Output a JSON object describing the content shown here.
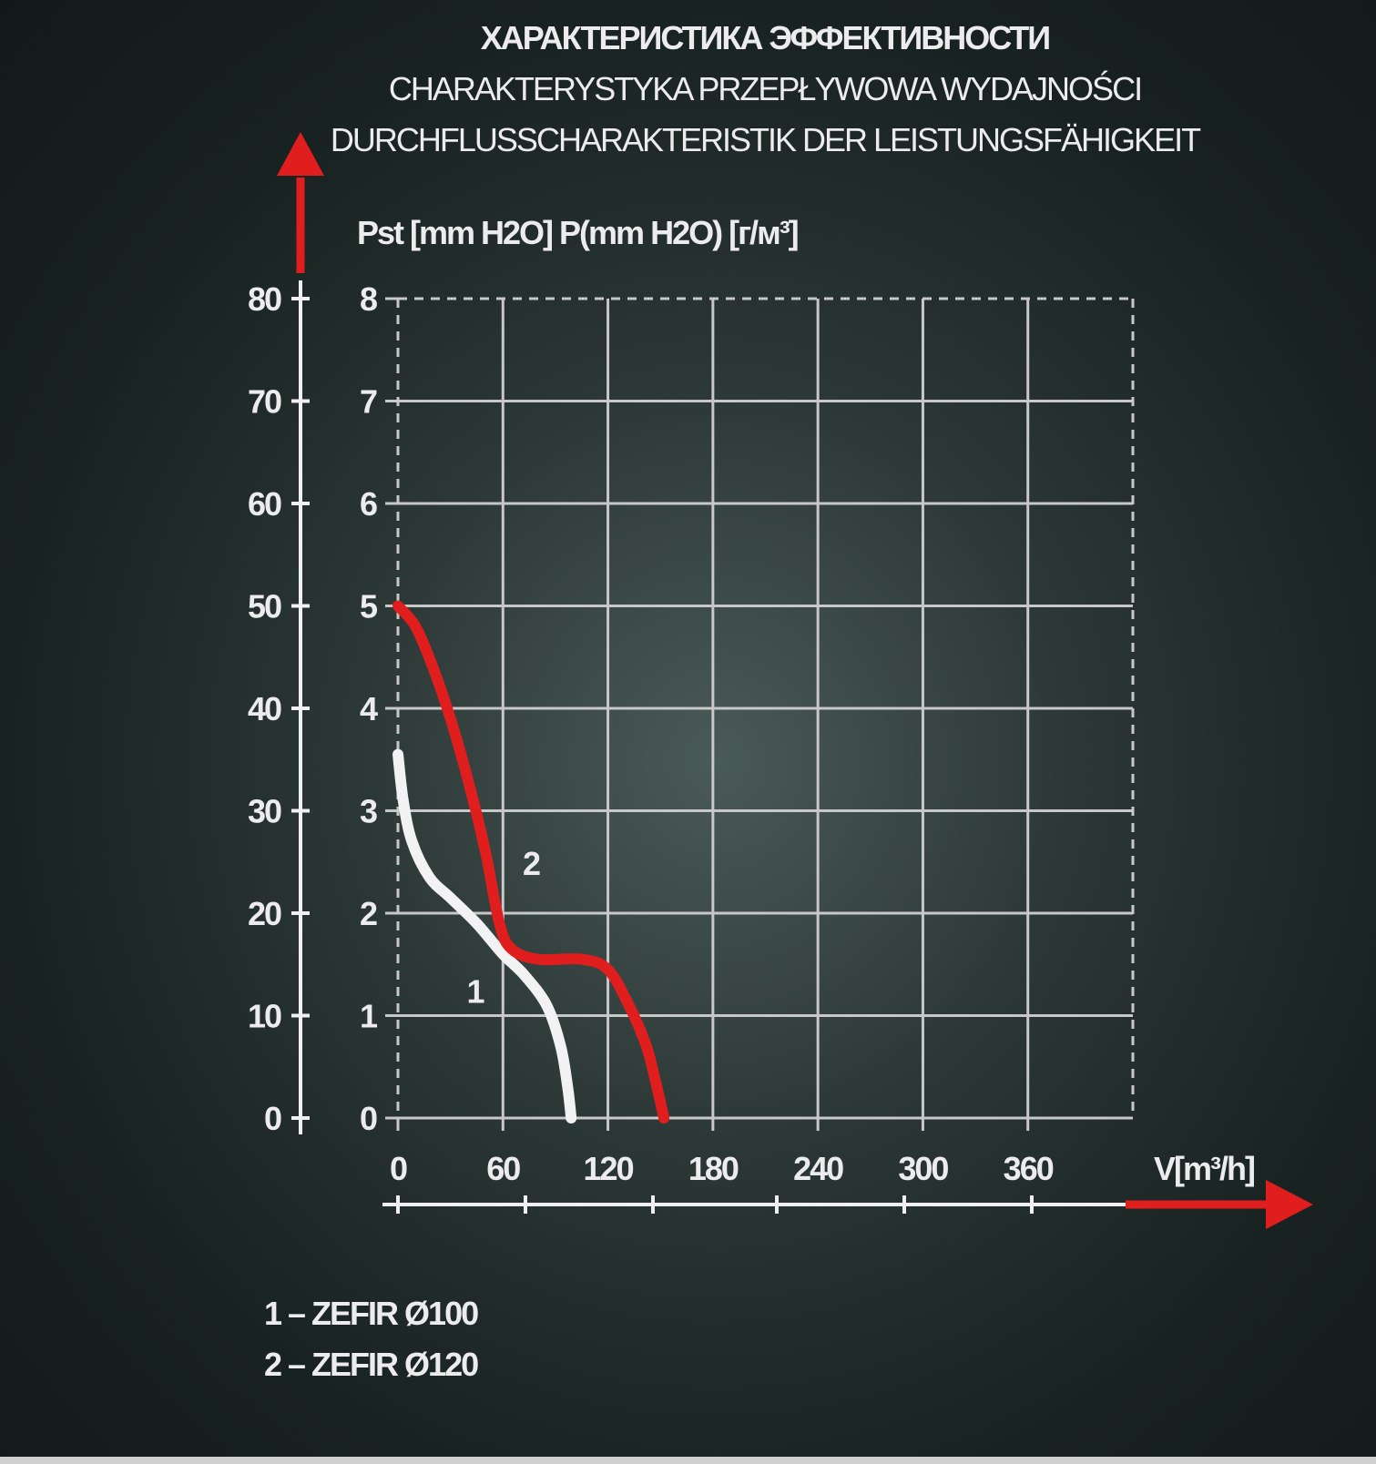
{
  "titles": {
    "ru": "ХАРАКТЕРИСТИКА ЭФФЕКТИВНОСТИ",
    "pl": "CHARAKTERYSTYKA PRZEPŁYWOWA WYDAJNOŚCI",
    "de": "DURCHFLUSSCHARAKTERISTIK DER LEISTUNGSFÄHIGKEIT"
  },
  "legend": {
    "item1": "1 – ZEFIR Ø100",
    "item2": "2 – ZEFIR Ø120"
  },
  "colors": {
    "accent_red": "#e01e1e",
    "curve_white": "#f2f2f2",
    "grid": "#c8c8c8",
    "text": "#ececec"
  },
  "chart_data": {
    "type": "line",
    "title": "",
    "ylabel": "Pst [mm H2O] P(mm H2O) [г/м³]",
    "xlabel": "V[m³/h]",
    "x_ticks": [
      "0",
      "60",
      "120",
      "180",
      "240",
      "300",
      "360"
    ],
    "y_ticks": [
      "0",
      "1",
      "2",
      "3",
      "4",
      "5",
      "6",
      "7",
      "8"
    ],
    "y2_ticks": [
      "0",
      "10",
      "20",
      "30",
      "40",
      "50",
      "60",
      "70",
      "80"
    ],
    "xlim": [
      0,
      420
    ],
    "ylim": [
      0,
      8
    ],
    "grid": true,
    "series": [
      {
        "name": "1",
        "color": "#f2f2f2",
        "points": [
          [
            0,
            3.55
          ],
          [
            3,
            3.1
          ],
          [
            8,
            2.7
          ],
          [
            18,
            2.35
          ],
          [
            30,
            2.15
          ],
          [
            45,
            1.9
          ],
          [
            60,
            1.6
          ],
          [
            72,
            1.4
          ],
          [
            85,
            1.1
          ],
          [
            93,
            0.7
          ],
          [
            97,
            0.3
          ],
          [
            99,
            0.0
          ]
        ]
      },
      {
        "name": "2",
        "color": "#e01e1e",
        "points": [
          [
            0,
            5.0
          ],
          [
            10,
            4.8
          ],
          [
            20,
            4.4
          ],
          [
            30,
            3.9
          ],
          [
            40,
            3.3
          ],
          [
            50,
            2.6
          ],
          [
            58,
            1.9
          ],
          [
            65,
            1.65
          ],
          [
            80,
            1.55
          ],
          [
            105,
            1.55
          ],
          [
            120,
            1.45
          ],
          [
            132,
            1.1
          ],
          [
            142,
            0.7
          ],
          [
            148,
            0.3
          ],
          [
            152,
            0.0
          ]
        ]
      }
    ],
    "curve_labels": [
      {
        "text": "1",
        "x": 44,
        "y": 1.25
      },
      {
        "text": "2",
        "x": 76,
        "y": 2.5
      }
    ]
  }
}
